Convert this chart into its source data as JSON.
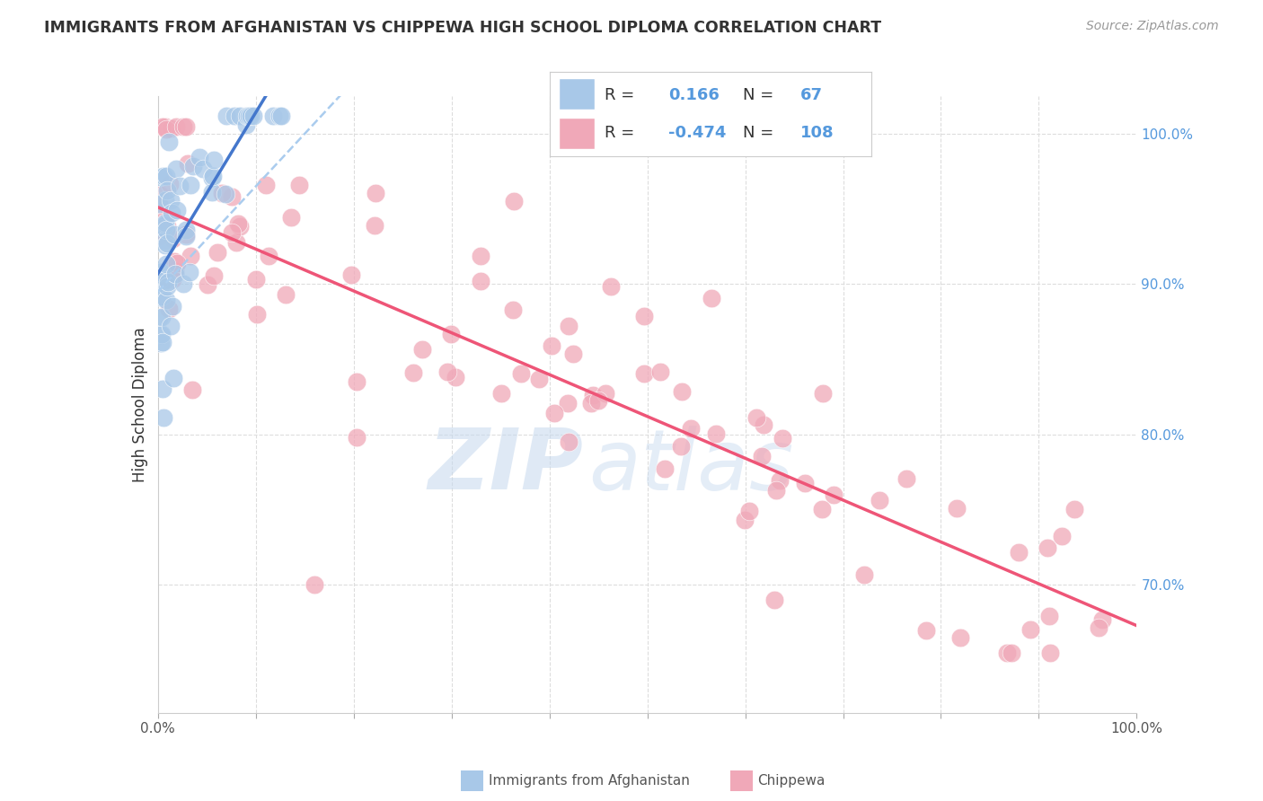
{
  "title": "IMMIGRANTS FROM AFGHANISTAN VS CHIPPEWA HIGH SCHOOL DIPLOMA CORRELATION CHART",
  "source": "Source: ZipAtlas.com",
  "ylabel": "High School Diploma",
  "xlim": [
    0.0,
    1.0
  ],
  "ylim": [
    0.615,
    1.025
  ],
  "ytick_labels_right": [
    "100.0%",
    "90.0%",
    "80.0%",
    "70.0%"
  ],
  "ytick_values_right": [
    1.0,
    0.9,
    0.8,
    0.7
  ],
  "legend_R_blue": "0.166",
  "legend_N_blue": "67",
  "legend_R_pink": "-0.474",
  "legend_N_pink": "108",
  "blue_fill": "#A8C8E8",
  "pink_fill": "#F0A8B8",
  "blue_edge": "#A8C8E8",
  "pink_edge": "#F0A8B8",
  "blue_line_color": "#4477CC",
  "pink_line_color": "#EE5577",
  "blue_dash_color": "#AACCEE",
  "grid_color": "#DDDDDD",
  "text_color": "#333333",
  "blue_legend_fill": "#A8C8E8",
  "pink_legend_fill": "#F0A8B8",
  "right_axis_color": "#5599DD",
  "source_color": "#999999"
}
